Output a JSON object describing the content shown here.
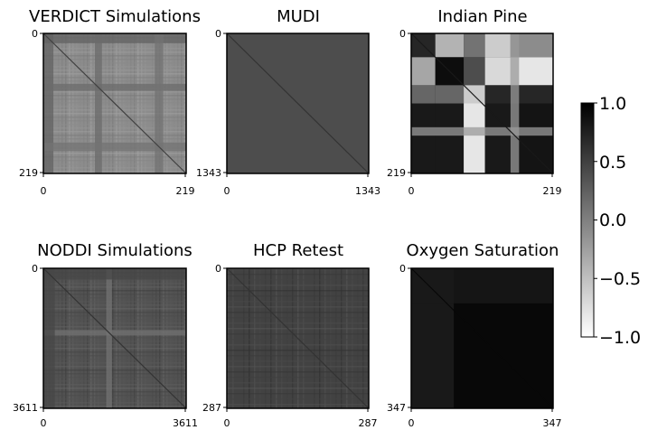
{
  "chart_data": {
    "type": "heatmap",
    "layout": "2x3 grid of square correlation matrices with a shared colorbar",
    "colormap": "gray_r (white = -1.0, black = 1.0)",
    "colorbar": {
      "ticks": [
        "1.0",
        "0.5",
        "0.0",
        "−0.5",
        "−1.0"
      ],
      "tick_values": [
        1.0,
        0.5,
        0.0,
        -0.5,
        -1.0
      ],
      "range": [
        -1.0,
        1.0
      ]
    },
    "panels": [
      {
        "title": "VERDICT Simulations",
        "n": 219,
        "ytick_labels": [
          "0",
          "219"
        ],
        "xtick_labels": [
          "0",
          "219"
        ],
        "base_value": 0.45,
        "pattern": "fine banding",
        "bands": [
          {
            "start": 0.0,
            "end": 0.07,
            "value": 0.62
          },
          {
            "start": 0.36,
            "end": 0.41,
            "value": 0.58
          },
          {
            "start": 0.78,
            "end": 0.84,
            "value": 0.55
          }
        ],
        "diagonal": 0.75
      },
      {
        "title": "MUDI",
        "n": 1343,
        "ytick_labels": [
          "0",
          "1343"
        ],
        "xtick_labels": [
          "0",
          "1343"
        ],
        "base_value": 0.7,
        "pattern": "smooth",
        "bands": [],
        "diagonal": 0.8
      },
      {
        "title": "Indian Pine",
        "n": 219,
        "ytick_labels": [
          "0",
          "219"
        ],
        "xtick_labels": [
          "0",
          "219"
        ],
        "base_value": 0.9,
        "pattern": "block",
        "blocks": [
          {
            "x": [
              0.0,
              0.17
            ],
            "y": [
              0.0,
              0.17
            ],
            "value": 0.85
          },
          {
            "x": [
              0.17,
              0.37
            ],
            "y": [
              0.0,
              0.17
            ],
            "value": 0.3
          },
          {
            "x": [
              0.37,
              0.52
            ],
            "y": [
              0.0,
              0.17
            ],
            "value": 0.55
          },
          {
            "x": [
              0.52,
              0.7
            ],
            "y": [
              0.0,
              0.17
            ],
            "value": 0.2
          },
          {
            "x": [
              0.7,
              1.0
            ],
            "y": [
              0.0,
              0.17
            ],
            "value": 0.45
          },
          {
            "x": [
              0.0,
              0.17
            ],
            "y": [
              0.17,
              0.37
            ],
            "value": 0.35
          },
          {
            "x": [
              0.17,
              0.37
            ],
            "y": [
              0.17,
              0.37
            ],
            "value": 0.95
          },
          {
            "x": [
              0.37,
              0.52
            ],
            "y": [
              0.17,
              0.37
            ],
            "value": 0.7
          },
          {
            "x": [
              0.52,
              0.7
            ],
            "y": [
              0.17,
              0.37
            ],
            "value": 0.15
          },
          {
            "x": [
              0.7,
              1.0
            ],
            "y": [
              0.17,
              0.37
            ],
            "value": 0.1
          },
          {
            "x": [
              0.0,
              0.17
            ],
            "y": [
              0.37,
              0.5
            ],
            "value": 0.6
          },
          {
            "x": [
              0.17,
              0.37
            ],
            "y": [
              0.37,
              0.5
            ],
            "value": 0.6
          },
          {
            "x": [
              0.37,
              0.52
            ],
            "y": [
              0.37,
              0.5
            ],
            "value": 0.2
          },
          {
            "x": [
              0.52,
              0.7
            ],
            "y": [
              0.37,
              0.5
            ],
            "value": 0.85
          },
          {
            "x": [
              0.7,
              1.0
            ],
            "y": [
              0.37,
              0.5
            ],
            "value": 0.85
          },
          {
            "x": [
              0.0,
              0.17
            ],
            "y": [
              0.5,
              1.0
            ],
            "value": 0.9
          },
          {
            "x": [
              0.17,
              0.37
            ],
            "y": [
              0.5,
              1.0
            ],
            "value": 0.9
          },
          {
            "x": [
              0.37,
              0.52
            ],
            "y": [
              0.5,
              1.0
            ],
            "value": 0.1
          },
          {
            "x": [
              0.52,
              0.7
            ],
            "y": [
              0.5,
              1.0
            ],
            "value": 0.9
          },
          {
            "x": [
              0.7,
              1.0
            ],
            "y": [
              0.5,
              1.0
            ],
            "value": 0.92
          }
        ],
        "bands": [
          {
            "start": 0.7,
            "end": 0.76,
            "value": 0.4,
            "axis": "x"
          },
          {
            "start": 0.67,
            "end": 0.73,
            "value": 0.4,
            "axis": "y"
          }
        ],
        "diagonal": 0.9
      },
      {
        "title": "NODDI Simulations",
        "n": 3611,
        "ytick_labels": [
          "0",
          "3611"
        ],
        "xtick_labels": [
          "0",
          "3611"
        ],
        "base_value": 0.68,
        "pattern": "fine banding",
        "bands": [
          {
            "start": 0.44,
            "end": 0.48,
            "value": 0.55
          },
          {
            "start": 0.0,
            "end": 0.08,
            "value": 0.72
          }
        ],
        "diagonal": 0.8
      },
      {
        "title": "HCP Retest",
        "n": 287,
        "ytick_labels": [
          "0",
          "287"
        ],
        "xtick_labels": [
          "0",
          "287"
        ],
        "base_value": 0.74,
        "pattern": "grid",
        "bands": [],
        "diagonal": 0.8
      },
      {
        "title": "Oxygen Saturation",
        "n": 347,
        "ytick_labels": [
          "0",
          "347"
        ],
        "xtick_labels": [
          "0",
          "347"
        ],
        "base_value": 0.97,
        "pattern": "corner gradient",
        "bands": [
          {
            "start": 0.0,
            "end": 0.3,
            "value": 0.88,
            "axis": "x"
          },
          {
            "start": 0.0,
            "end": 0.25,
            "value": 0.9,
            "axis": "y"
          }
        ],
        "diagonal": 0.97
      }
    ]
  }
}
